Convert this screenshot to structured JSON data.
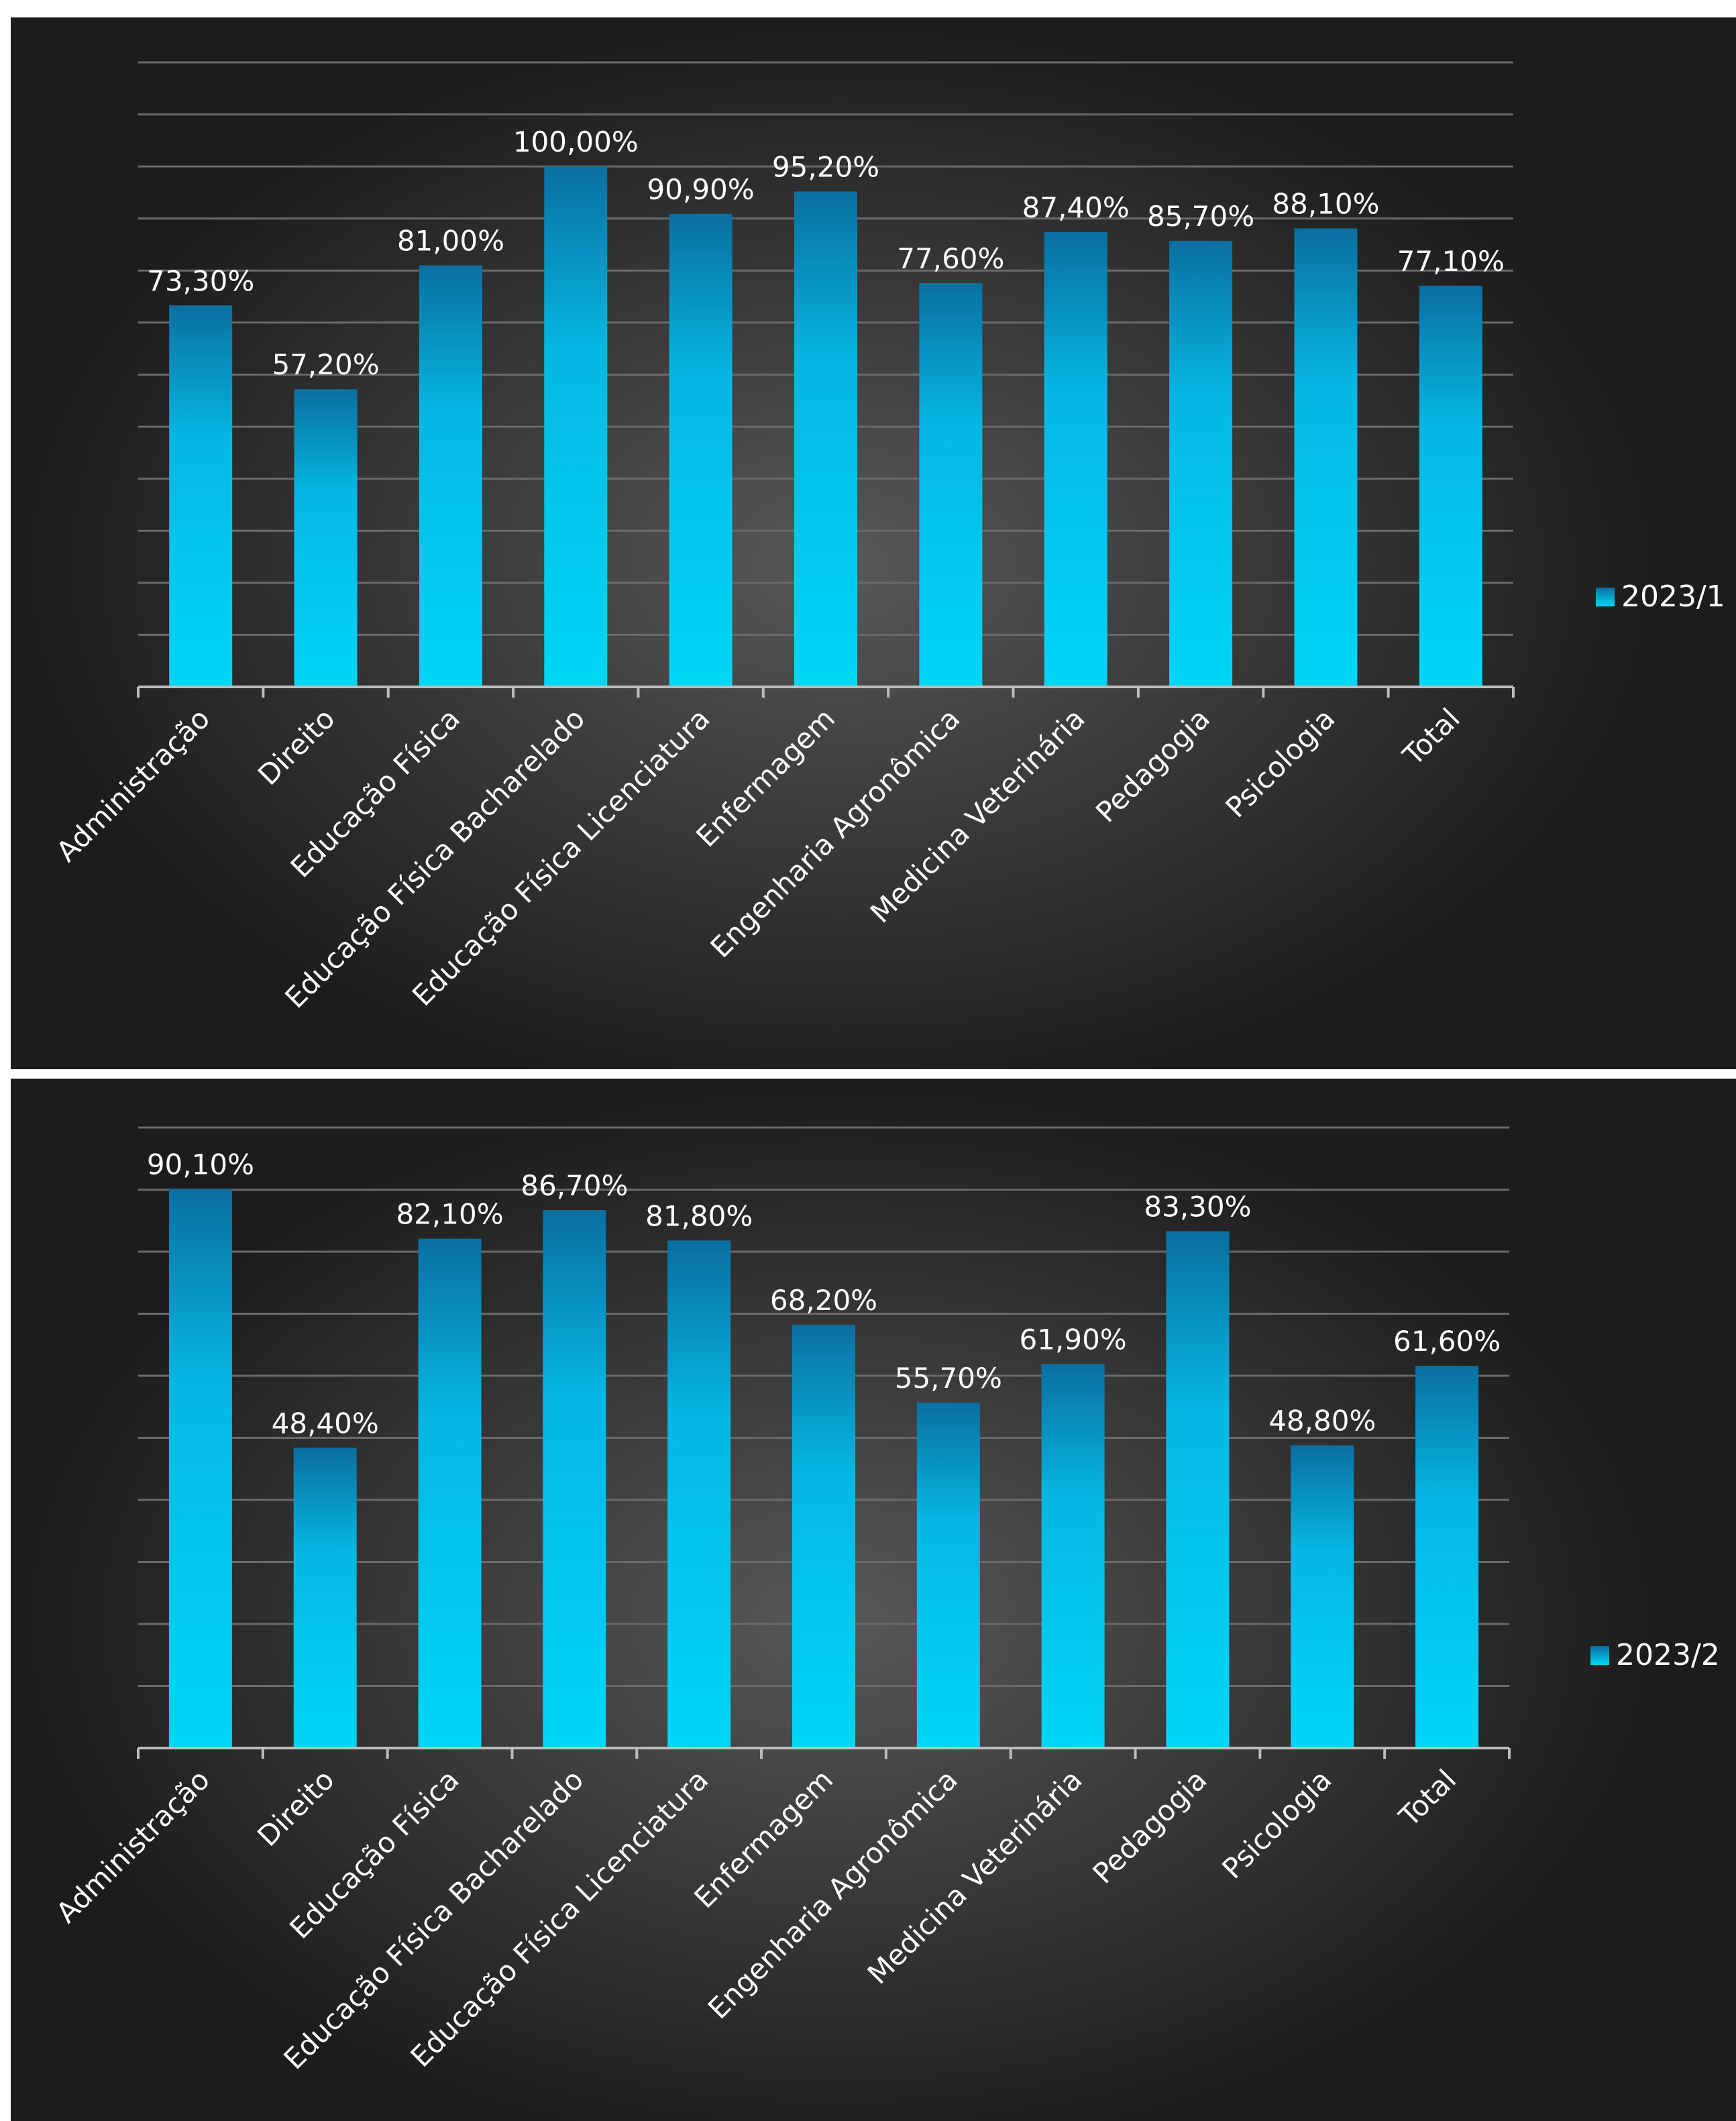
{
  "chart_data": [
    {
      "type": "bar",
      "categories": [
        "Administração",
        "Direito",
        "Educação Física",
        "Educação Física Bacharelado",
        "Educação Física Licenciatura",
        "Enfermagem",
        "Engenharia Agronômica",
        "Medicina Veterinária",
        "Pedagogia",
        "Psicologia",
        "Total"
      ],
      "series": [
        {
          "name": "2023/1",
          "values": [
            73.3,
            57.2,
            81.0,
            100.0,
            90.9,
            95.2,
            77.6,
            87.4,
            85.7,
            88.1,
            77.1
          ]
        }
      ],
      "data_labels": [
        "73,30%",
        "57,20%",
        "81,00%",
        "100,00%",
        "90,90%",
        "95,20%",
        "77,60%",
        "87,40%",
        "85,70%",
        "88,10%",
        "77,10%"
      ],
      "ylim": [
        0,
        120
      ],
      "grid": true,
      "legend_position": "right"
    },
    {
      "type": "bar",
      "categories": [
        "Administração",
        "Direito",
        "Educação Física",
        "Educação Física Bacharelado",
        "Educação Física Licenciatura",
        "Enfermagem",
        "Engenharia Agronômica",
        "Medicina Veterinária",
        "Pedagogia",
        "Psicologia",
        "Total"
      ],
      "series": [
        {
          "name": "2023/2",
          "values": [
            90.1,
            48.4,
            82.1,
            86.7,
            81.8,
            68.2,
            55.7,
            61.9,
            83.3,
            48.8,
            61.6
          ]
        }
      ],
      "data_labels": [
        "90,10%",
        "48,40%",
        "82,10%",
        "86,70%",
        "81,80%",
        "68,20%",
        "55,70%",
        "61,90%",
        "83,30%",
        "48,80%",
        "61,60%"
      ],
      "ylim": [
        0,
        100
      ],
      "grid": true,
      "legend_position": "right"
    }
  ],
  "colors": {
    "bar_top": "#0a6fa0",
    "bar_bottom": "#00d6f5",
    "grid": "#6a6a6a",
    "text": "#ffffff"
  }
}
